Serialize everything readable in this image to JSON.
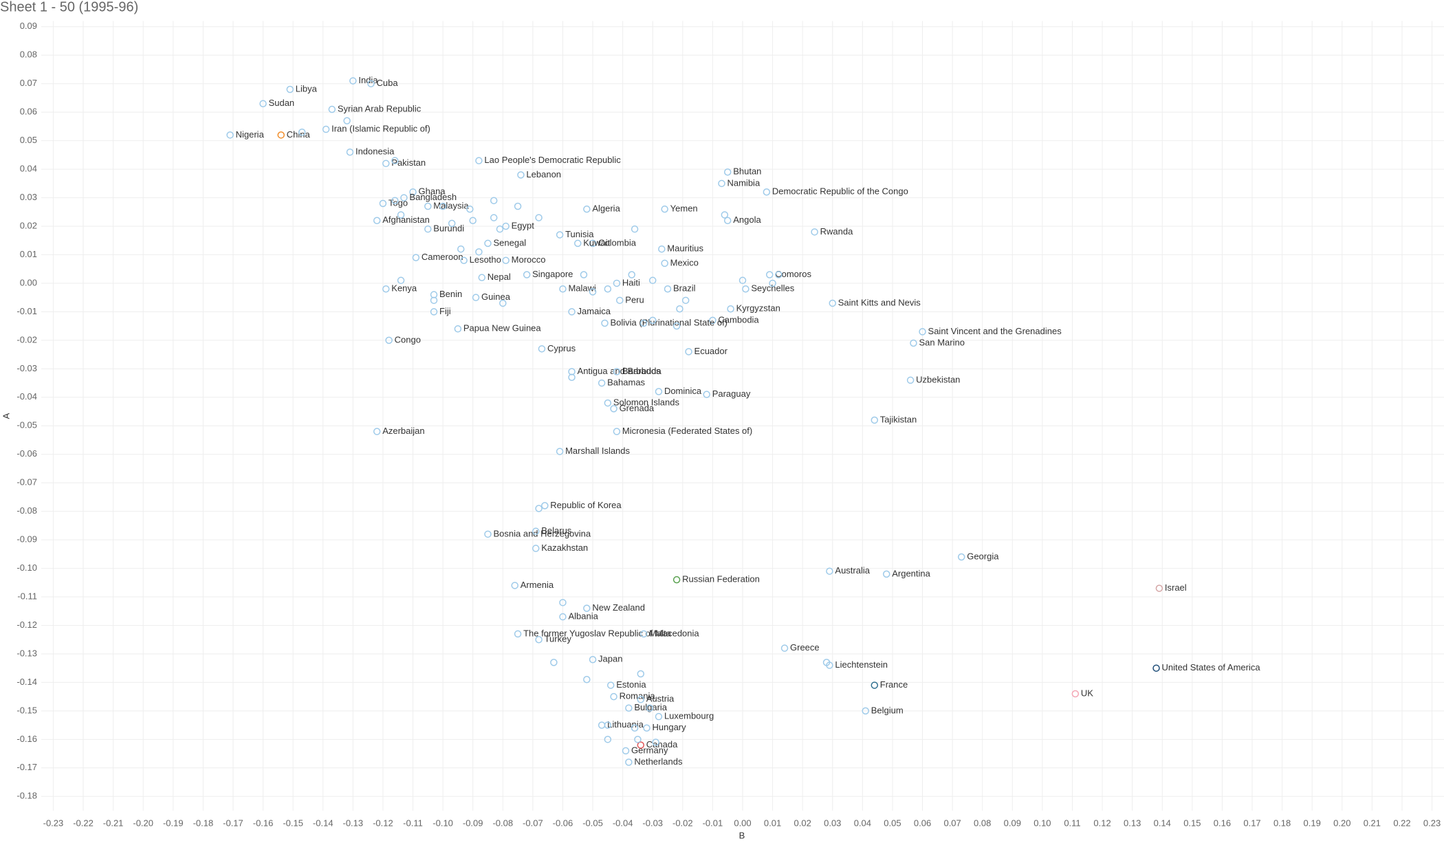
{
  "chart_data": {
    "type": "scatter",
    "title": "Sheet 1 - 50 (1995-96)",
    "x_label": "B",
    "y_label": "A",
    "xlim": [
      -0.234,
      0.234
    ],
    "ylim": [
      -0.185,
      0.092
    ],
    "grid": true,
    "xticks": [
      -0.23,
      -0.22,
      -0.21,
      {
        "value": -0.2,
        "label": "-0.20"
      },
      -0.19,
      -0.18,
      -0.17,
      -0.16,
      -0.15,
      -0.14,
      -0.13,
      -0.12,
      -0.11,
      {
        "value": -0.1,
        "label": "-0.10"
      },
      -0.09,
      -0.08,
      -0.07,
      -0.06,
      -0.05,
      -0.04,
      -0.03,
      -0.02,
      -0.01,
      {
        "value": 0,
        "label": "0.00"
      },
      0.01,
      0.02,
      0.03,
      0.04,
      0.05,
      0.06,
      0.07,
      0.08,
      0.09,
      {
        "value": 0.1,
        "label": "0.10"
      },
      0.11,
      0.12,
      0.13,
      0.14,
      0.15,
      0.16,
      0.17,
      0.18,
      0.19,
      {
        "value": 0.2,
        "label": "0.20"
      },
      0.21,
      0.22,
      0.23
    ],
    "yticks": [
      -0.18,
      -0.17,
      -0.16,
      -0.15,
      -0.14,
      -0.13,
      -0.12,
      -0.11,
      {
        "value": -0.1,
        "label": "-0.10"
      },
      -0.09,
      -0.08,
      -0.07,
      -0.06,
      -0.05,
      -0.04,
      -0.03,
      -0.02,
      -0.01,
      {
        "value": 0,
        "label": "0.00"
      },
      0.01,
      0.02,
      0.03,
      0.04,
      0.05,
      0.06,
      0.07,
      0.08,
      0.09
    ],
    "labels": [
      "India",
      "Cuba",
      "Libya",
      "Sudan",
      "Syrian Arab Republic",
      "Iran (Islamic Republic of)",
      "Nigeria",
      "China",
      "Indonesia",
      "Pakistan",
      "Lao People's Democratic Republic",
      "Lebanon",
      "Ghana",
      "Bangladesh",
      "Togo",
      "Malaysia",
      "Afghanistan",
      "Burundi",
      "Egypt",
      "Algeria",
      "Yemen",
      "Tunisia",
      "Colombia",
      "Senegal",
      "Kuwait",
      "Mauritius",
      "Mexico",
      "Morocco",
      "Cameroon",
      "Lesotho",
      "Singapore",
      "Nepal",
      "Kenya",
      "Benin",
      "Malawi",
      "Haiti",
      "Brazil",
      "Guinea",
      "Peru",
      "Fiji",
      "Kyrgyzstan",
      "Jamaica",
      "Cambodia",
      "Bolivia (Plurinational State of)",
      "Papua New Guinea",
      "Congo",
      "Cyprus",
      "Ecuador",
      "Antigua and Barbuda",
      "Barbados",
      "Bahamas",
      "Dominica",
      "Paraguay",
      "Solomon Islands",
      "Grenada",
      "Azerbaijan",
      "Micronesia (Federated States of)",
      "Marshall Islands",
      "Bhutan",
      "Namibia",
      "Democratic Republic of the Congo",
      "Angola",
      "Rwanda",
      "Comoros",
      "Seychelles",
      "Saint Kitts and Nevis",
      "Saint Vincent and the Grenadines",
      "San Marino",
      "Uzbekistan",
      "Tajikistan",
      "Republic of Korea",
      "Bosnia and Herzegovina",
      "Belarus",
      "Kazakhstan",
      "Russian Federation",
      "Armenia",
      "New Zealand",
      "Albania",
      "The former Yugoslav Republic of Macedonia",
      "Turkey",
      "Malta",
      "Japan",
      "Estonia",
      "Romania",
      "Austria",
      "Bulgaria",
      "Luxembourg",
      "Lithuania",
      "Hungary",
      "Germany",
      "Canada",
      "Netherlands",
      "Australia",
      "Argentina",
      "Georgia",
      "Israel",
      "Greece",
      "Liechtenstein",
      "France",
      "Belgium",
      "United States of America",
      "UK",
      null,
      null,
      null,
      null,
      null,
      null,
      null,
      null,
      null,
      null,
      null,
      null,
      null,
      null,
      null,
      null,
      null,
      null,
      null,
      null,
      null,
      null,
      null,
      null,
      null,
      null,
      null,
      null,
      null,
      null,
      null,
      null,
      null,
      null,
      null,
      null,
      null,
      null,
      null,
      null,
      null,
      null,
      null,
      null,
      null,
      null,
      null
    ],
    "x": [
      -0.13,
      -0.124,
      -0.151,
      -0.16,
      -0.137,
      -0.139,
      -0.171,
      -0.154,
      -0.131,
      -0.119,
      -0.088,
      -0.074,
      -0.11,
      -0.113,
      -0.12,
      -0.105,
      -0.122,
      -0.105,
      -0.079,
      -0.052,
      -0.026,
      -0.061,
      -0.05,
      -0.085,
      -0.055,
      -0.027,
      -0.026,
      -0.079,
      -0.109,
      -0.093,
      -0.072,
      -0.087,
      -0.119,
      -0.103,
      -0.06,
      -0.042,
      -0.025,
      -0.089,
      -0.041,
      -0.103,
      -0.004,
      -0.057,
      -0.01,
      -0.046,
      -0.095,
      -0.118,
      -0.067,
      -0.018,
      -0.057,
      -0.042,
      -0.047,
      -0.028,
      -0.012,
      -0.045,
      -0.043,
      -0.122,
      -0.042,
      -0.061,
      -0.005,
      -0.007,
      0.008,
      -0.005,
      0.024,
      0.009,
      0.001,
      0.03,
      0.06,
      0.057,
      0.056,
      0.044,
      -0.066,
      -0.085,
      -0.069,
      -0.069,
      -0.022,
      -0.076,
      -0.052,
      -0.06,
      -0.075,
      -0.068,
      -0.033,
      -0.05,
      -0.044,
      -0.043,
      -0.034,
      -0.038,
      -0.028,
      -0.047,
      -0.032,
      -0.039,
      -0.034,
      -0.038,
      0.029,
      0.048,
      0.073,
      0.139,
      0.014,
      0.029,
      0.044,
      0.041,
      0.138,
      0.111,
      -0.147,
      -0.132,
      -0.116,
      -0.116,
      -0.114,
      -0.1,
      -0.097,
      -0.091,
      -0.09,
      -0.083,
      -0.083,
      -0.081,
      -0.075,
      -0.068,
      -0.094,
      -0.088,
      -0.08,
      -0.114,
      -0.103,
      -0.053,
      -0.05,
      -0.045,
      -0.037,
      -0.03,
      -0.021,
      -0.019,
      -0.033,
      -0.03,
      -0.022,
      -0.036,
      -0.006,
      0.0,
      0.01,
      0.012,
      -0.057,
      -0.06,
      -0.063,
      -0.034,
      -0.052,
      -0.031,
      -0.045,
      -0.036,
      -0.035,
      -0.045,
      -0.029,
      0.028,
      -0.068
    ],
    "values": [
      0.071,
      0.07,
      0.068,
      0.063,
      0.061,
      0.054,
      0.052,
      0.052,
      0.046,
      0.042,
      0.043,
      0.038,
      0.032,
      0.03,
      0.028,
      0.027,
      0.022,
      0.019,
      0.02,
      0.026,
      0.026,
      0.017,
      0.014,
      0.014,
      0.014,
      0.012,
      0.007,
      0.008,
      0.009,
      0.008,
      0.003,
      0.002,
      -0.002,
      -0.004,
      -0.002,
      0.0,
      -0.002,
      -0.005,
      -0.006,
      -0.01,
      -0.009,
      -0.01,
      -0.013,
      -0.014,
      -0.016,
      -0.02,
      -0.023,
      -0.024,
      -0.031,
      -0.031,
      -0.035,
      -0.038,
      -0.039,
      -0.042,
      -0.044,
      -0.052,
      -0.052,
      -0.059,
      0.039,
      0.035,
      0.032,
      0.022,
      0.018,
      0.003,
      -0.002,
      -0.007,
      -0.017,
      -0.021,
      -0.034,
      -0.048,
      -0.078,
      -0.088,
      -0.087,
      -0.093,
      -0.104,
      -0.106,
      -0.114,
      -0.117,
      -0.123,
      -0.125,
      -0.123,
      -0.132,
      -0.141,
      -0.145,
      -0.146,
      -0.149,
      -0.152,
      -0.155,
      -0.156,
      -0.164,
      -0.162,
      -0.168,
      -0.101,
      -0.102,
      -0.096,
      -0.107,
      -0.128,
      -0.134,
      -0.141,
      -0.15,
      -0.135,
      -0.144,
      0.053,
      0.057,
      0.043,
      0.029,
      0.024,
      0.027,
      0.021,
      0.026,
      0.022,
      0.029,
      0.023,
      0.019,
      0.027,
      0.023,
      0.012,
      0.011,
      -0.007,
      0.001,
      -0.006,
      0.003,
      -0.003,
      -0.002,
      0.003,
      0.001,
      -0.009,
      -0.006,
      -0.014,
      -0.013,
      -0.015,
      0.019,
      0.024,
      0.001,
      0.0,
      0.003,
      -0.033,
      -0.112,
      -0.133,
      -0.137,
      -0.139,
      -0.149,
      -0.155,
      -0.156,
      -0.16,
      -0.16,
      -0.161,
      -0.133,
      -0.079
    ],
    "colors": [
      "#9ecae9",
      "#9ecae9",
      "#9ecae9",
      "#9ecae9",
      "#9ecae9",
      "#9ecae9",
      "#9ecae9",
      "#f28e2b",
      "#9ecae9",
      "#9ecae9",
      "#9ecae9",
      "#9ecae9",
      "#9ecae9",
      "#9ecae9",
      "#9ecae9",
      "#9ecae9",
      "#9ecae9",
      "#9ecae9",
      "#9ecae9",
      "#9ecae9",
      "#9ecae9",
      "#9ecae9",
      "#9ecae9",
      "#9ecae9",
      "#9ecae9",
      "#9ecae9",
      "#9ecae9",
      "#9ecae9",
      "#9ecae9",
      "#9ecae9",
      "#9ecae9",
      "#9ecae9",
      "#9ecae9",
      "#9ecae9",
      "#9ecae9",
      "#9ecae9",
      "#9ecae9",
      "#9ecae9",
      "#9ecae9",
      "#9ecae9",
      "#9ecae9",
      "#9ecae9",
      "#9ecae9",
      "#9ecae9",
      "#9ecae9",
      "#9ecae9",
      "#9ecae9",
      "#9ecae9",
      "#9ecae9",
      "#9ecae9",
      "#9ecae9",
      "#9ecae9",
      "#9ecae9",
      "#9ecae9",
      "#9ecae9",
      "#9ecae9",
      "#9ecae9",
      "#9ecae9",
      "#9ecae9",
      "#9ecae9",
      "#9ecae9",
      "#9ecae9",
      "#9ecae9",
      "#9ecae9",
      "#9ecae9",
      "#9ecae9",
      "#9ecae9",
      "#9ecae9",
      "#9ecae9",
      "#9ecae9",
      "#9ecae9",
      "#9ecae9",
      "#9ecae9",
      "#9ecae9",
      "#59a14f",
      "#9ecae9",
      "#9ecae9",
      "#9ecae9",
      "#9ecae9",
      "#9ecae9",
      "#9ecae9",
      "#9ecae9",
      "#9ecae9",
      "#9ecae9",
      "#9ecae9",
      "#9ecae9",
      "#9ecae9",
      "#9ecae9",
      "#9ecae9",
      "#9ecae9",
      "#e15759",
      "#9ecae9",
      "#9ecae9",
      "#9ecae9",
      "#9ecae9",
      "#d4a5a5",
      "#9ecae9",
      "#9ecae9",
      "#2f6f8f",
      "#9ecae9",
      "#1f4e79",
      "#f4a6b4",
      "#9ecae9",
      "#9ecae9",
      "#9ecae9",
      "#9ecae9",
      "#9ecae9",
      "#9ecae9",
      "#9ecae9",
      "#9ecae9",
      "#9ecae9",
      "#9ecae9",
      "#9ecae9",
      "#9ecae9",
      "#9ecae9",
      "#9ecae9",
      "#9ecae9",
      "#9ecae9",
      "#9ecae9",
      "#9ecae9",
      "#9ecae9",
      "#9ecae9",
      "#9ecae9",
      "#9ecae9",
      "#9ecae9",
      "#9ecae9",
      "#9ecae9",
      "#9ecae9",
      "#9ecae9",
      "#9ecae9",
      "#9ecae9",
      "#9ecae9",
      "#9ecae9",
      "#9ecae9",
      "#9ecae9",
      "#9ecae9",
      "#9ecae9",
      "#9ecae9",
      "#9ecae9",
      "#9ecae9",
      "#9ecae9",
      "#9ecae9",
      "#9ecae9",
      "#9ecae9",
      "#9ecae9",
      "#9ecae9",
      "#9ecae9",
      "#9ecae9",
      "#9ecae9"
    ]
  }
}
